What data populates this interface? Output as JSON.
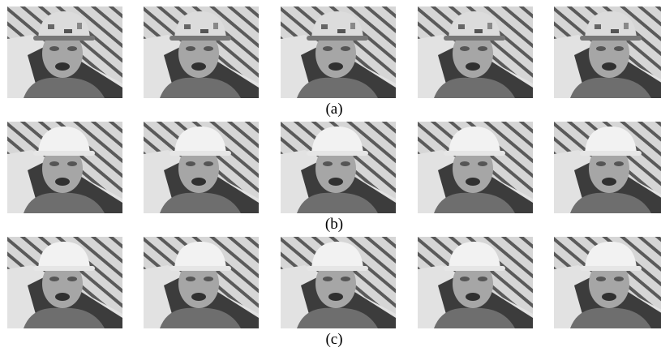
{
  "rows": [
    {
      "label": "(a)"
    },
    {
      "label": "(b)"
    },
    {
      "label": "(c)"
    }
  ]
}
